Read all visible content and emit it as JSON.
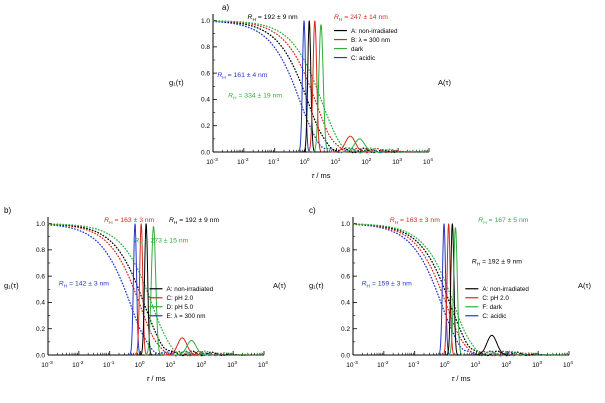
{
  "colors": {
    "black": "#000000",
    "red": "#d42a1e",
    "green": "#2fae3c",
    "blue": "#2437c8"
  },
  "chart_data": [
    {
      "id": "a",
      "type": "line",
      "panel_label": "a)",
      "xlabel": "τ / ms",
      "ylabel": "g₁(τ)",
      "right_label": "A(τ)",
      "x_ticks_exponents": [
        -3,
        -2,
        -1,
        0,
        1,
        2,
        3,
        4
      ],
      "y_ticks": [
        0.0,
        0.2,
        0.4,
        0.6,
        0.8,
        1.0
      ],
      "xlim_log": [
        -3,
        4
      ],
      "ylim": [
        0,
        1.05
      ],
      "annotations": [
        {
          "text": "R_H = 192 ± 9 nm",
          "color": "black",
          "fx": 0.16,
          "fy": 0.0
        },
        {
          "text": "R_H = 247 ± 14 nm",
          "color": "red",
          "fx": 0.56,
          "fy": 0.0
        },
        {
          "text": "R_H = 161 ± 4 nm",
          "color": "blue",
          "fx": 0.02,
          "fy": 0.42
        },
        {
          "text": "R_H = 334 ± 19 nm",
          "color": "green",
          "fx": 0.07,
          "fy": 0.57
        }
      ],
      "legend": {
        "fx": 0.56,
        "fy": 0.12,
        "entries": [
          {
            "label": "A: non-irradiated",
            "color": "black"
          },
          {
            "label": "B: λ = 300 nm",
            "color": "red"
          },
          {
            "label": "dark",
            "color": "green"
          },
          {
            "label": "C: acidic",
            "color": "blue"
          }
        ]
      },
      "decay_curves": [
        {
          "color": "blue",
          "log_tau_c": -0.15,
          "beta": 0.75
        },
        {
          "color": "black",
          "log_tau_c": 0.1,
          "beta": 0.75
        },
        {
          "color": "red",
          "log_tau_c": 0.35,
          "beta": 0.75
        },
        {
          "color": "green",
          "log_tau_c": 0.55,
          "beta": 0.75
        }
      ],
      "distribution_peaks": [
        {
          "color": "blue",
          "log_center": -0.05,
          "sigma": 0.05,
          "height": 1.0
        },
        {
          "color": "black",
          "log_center": 0.12,
          "sigma": 0.05,
          "height": 1.0
        },
        {
          "color": "red",
          "log_center": 0.3,
          "sigma": 0.06,
          "height": 1.0
        },
        {
          "color": "green",
          "log_center": 0.5,
          "sigma": 0.07,
          "height": 0.97
        },
        {
          "color": "red",
          "log_center": 1.45,
          "sigma": 0.16,
          "height": 0.12
        },
        {
          "color": "green",
          "log_center": 1.75,
          "sigma": 0.16,
          "height": 0.1
        }
      ]
    },
    {
      "id": "b",
      "type": "line",
      "panel_label": "b)",
      "xlabel": "τ / ms",
      "ylabel": "g₁(τ)",
      "right_label": "A(τ)",
      "x_ticks_exponents": [
        -3,
        -2,
        -1,
        0,
        1,
        2,
        3,
        4
      ],
      "y_ticks": [
        0.0,
        0.2,
        0.4,
        0.6,
        0.8,
        1.0
      ],
      "xlim_log": [
        -3,
        4
      ],
      "ylim": [
        0,
        1.05
      ],
      "annotations": [
        {
          "text": "R_H = 163 ± 3 nm",
          "color": "red",
          "fx": 0.26,
          "fy": 0.0
        },
        {
          "text": "R_H = 192 ± 9 nm",
          "color": "black",
          "fx": 0.56,
          "fy": 0.0
        },
        {
          "text": "R_H = 273 ± 15 nm",
          "color": "green",
          "fx": 0.4,
          "fy": 0.15
        },
        {
          "text": "R_H = 142 ± 3 nm",
          "color": "blue",
          "fx": 0.05,
          "fy": 0.46
        }
      ],
      "legend": {
        "fx": 0.47,
        "fy": 0.52,
        "entries": [
          {
            "label": "A: non-irradiated",
            "color": "black"
          },
          {
            "label": "C: pH 2.0",
            "color": "red"
          },
          {
            "label": "D: pH 5.0",
            "color": "green"
          },
          {
            "label": "E: λ = 300 nm",
            "color": "blue"
          }
        ]
      },
      "decay_curves": [
        {
          "color": "blue",
          "log_tau_c": -0.3,
          "beta": 0.75
        },
        {
          "color": "red",
          "log_tau_c": 0.0,
          "beta": 0.75
        },
        {
          "color": "black",
          "log_tau_c": 0.15,
          "beta": 0.75
        },
        {
          "color": "green",
          "log_tau_c": 0.4,
          "beta": 0.75
        }
      ],
      "distribution_peaks": [
        {
          "color": "blue",
          "log_center": -0.18,
          "sigma": 0.05,
          "height": 1.0
        },
        {
          "color": "red",
          "log_center": 0.02,
          "sigma": 0.05,
          "height": 1.0
        },
        {
          "color": "black",
          "log_center": 0.18,
          "sigma": 0.05,
          "height": 1.0
        },
        {
          "color": "green",
          "log_center": 0.42,
          "sigma": 0.07,
          "height": 0.98
        },
        {
          "color": "red",
          "log_center": 1.35,
          "sigma": 0.15,
          "height": 0.13
        },
        {
          "color": "green",
          "log_center": 1.65,
          "sigma": 0.15,
          "height": 0.11
        }
      ]
    },
    {
      "id": "c",
      "type": "line",
      "panel_label": "c)",
      "xlabel": "τ / ms",
      "ylabel": "g₁(τ)",
      "right_label": "A(τ)",
      "x_ticks_exponents": [
        -3,
        -2,
        -1,
        0,
        1,
        2,
        3,
        4
      ],
      "y_ticks": [
        0.0,
        0.2,
        0.4,
        0.6,
        0.8,
        1.0
      ],
      "xlim_log": [
        -3,
        4
      ],
      "ylim": [
        0,
        1.05
      ],
      "annotations": [
        {
          "text": "R_H = 163 ± 3 nm",
          "color": "red",
          "fx": 0.17,
          "fy": 0.0
        },
        {
          "text": "R_H = 167 ± 5 nm",
          "color": "green",
          "fx": 0.58,
          "fy": 0.0
        },
        {
          "text": "R_H = 192 ± 9 nm",
          "color": "black",
          "fx": 0.55,
          "fy": 0.3
        },
        {
          "text": "R_H = 159 ± 3 nm",
          "color": "blue",
          "fx": 0.04,
          "fy": 0.46
        }
      ],
      "legend": {
        "fx": 0.52,
        "fy": 0.52,
        "entries": [
          {
            "label": "A: non-irradiated",
            "color": "black"
          },
          {
            "label": "C: pH 2.0",
            "color": "red"
          },
          {
            "label": "F: dark",
            "color": "green"
          },
          {
            "label": "C: acidic",
            "color": "blue"
          }
        ]
      },
      "decay_curves": [
        {
          "color": "blue",
          "log_tau_c": -0.1,
          "beta": 0.75
        },
        {
          "color": "red",
          "log_tau_c": 0.05,
          "beta": 0.75
        },
        {
          "color": "black",
          "log_tau_c": 0.18,
          "beta": 0.75
        },
        {
          "color": "green",
          "log_tau_c": 0.3,
          "beta": 0.75
        }
      ],
      "distribution_peaks": [
        {
          "color": "blue",
          "log_center": -0.05,
          "sigma": 0.05,
          "height": 1.0
        },
        {
          "color": "red",
          "log_center": 0.1,
          "sigma": 0.05,
          "height": 1.0
        },
        {
          "color": "black",
          "log_center": 0.22,
          "sigma": 0.05,
          "height": 1.0
        },
        {
          "color": "green",
          "log_center": 0.32,
          "sigma": 0.06,
          "height": 0.97
        },
        {
          "color": "black",
          "log_center": 1.5,
          "sigma": 0.16,
          "height": 0.15
        }
      ]
    }
  ]
}
